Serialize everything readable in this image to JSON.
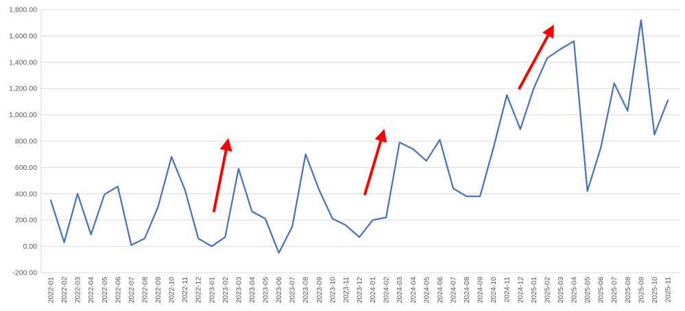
{
  "chart": {
    "title": "",
    "background": "#FFFFFF",
    "grid_color": "#D9D9D9",
    "axis_text_color": "#595959"
  },
  "chart_data": {
    "type": "line",
    "title": "",
    "xlabel": "",
    "ylabel": "",
    "grid": true,
    "legend": "none",
    "ylim": [
      -200,
      1800
    ],
    "x_label_rotation": 90,
    "y_ticks": [
      {
        "value": -200,
        "label": "-200.00"
      },
      {
        "value": 0,
        "label": "0.00"
      },
      {
        "value": 200,
        "label": "200.00"
      },
      {
        "value": 400,
        "label": "400.00"
      },
      {
        "value": 600,
        "label": "600.00"
      },
      {
        "value": 800,
        "label": "800.00"
      },
      {
        "value": 1000,
        "label": "1,000.00"
      },
      {
        "value": 1200,
        "label": "1,200.00"
      },
      {
        "value": 1400,
        "label": "1,400.00"
      },
      {
        "value": 1600,
        "label": "1,600.00"
      },
      {
        "value": 1800,
        "label": "1,800.00"
      }
    ],
    "categories": [
      "2022-01",
      "2022-02",
      "2022-03",
      "2022-04",
      "2022-05",
      "2022-06",
      "2022-07",
      "2022-08",
      "2022-09",
      "2022-10",
      "2022-11",
      "2022-12",
      "2023-01",
      "2023-02",
      "2023-03",
      "2023-04",
      "2023-05",
      "2023-06",
      "2023-07",
      "2023-08",
      "2023-09",
      "2023-10",
      "2023-11",
      "2023-12",
      "2024-01",
      "2024-02",
      "2024-03",
      "2024-04",
      "2024-05",
      "2024-06",
      "2024-07",
      "2024-08",
      "2024-09",
      "2024-10",
      "2024-11",
      "2024-12",
      "2025-01",
      "2025-02",
      "2025-03",
      "2025-04",
      "2025-05",
      "2025-06",
      "2025-07",
      "2025-08",
      "2025-09",
      "2025-10",
      "2025-11"
    ],
    "series": [
      {
        "color": "#4472C4",
        "stroke_width": 2.25,
        "values": [
          350,
          30,
          400,
          90,
          395,
          455,
          10,
          60,
          300,
          680,
          430,
          60,
          0,
          70,
          590,
          265,
          210,
          -50,
          150,
          700,
          430,
          210,
          160,
          70,
          200,
          220,
          790,
          740,
          650,
          810,
          440,
          380,
          380,
          750,
          1150,
          890,
          1200,
          1430,
          1500,
          1560,
          420,
          750,
          1240,
          1030,
          1720,
          850,
          1110
        ]
      }
    ],
    "annotations": [
      {
        "type": "arrow",
        "color": "#FF0000",
        "stroke_width": 4,
        "from": {
          "x": 12.15,
          "y": 260
        },
        "to": {
          "x": 13.2,
          "y": 800
        }
      },
      {
        "type": "arrow",
        "color": "#FF0000",
        "stroke_width": 4,
        "from": {
          "x": 23.4,
          "y": 390
        },
        "to": {
          "x": 24.8,
          "y": 870
        }
      },
      {
        "type": "arrow",
        "color": "#FF0000",
        "stroke_width": 4,
        "from": {
          "x": 34.9,
          "y": 1195
        },
        "to": {
          "x": 37.4,
          "y": 1665
        }
      }
    ]
  }
}
